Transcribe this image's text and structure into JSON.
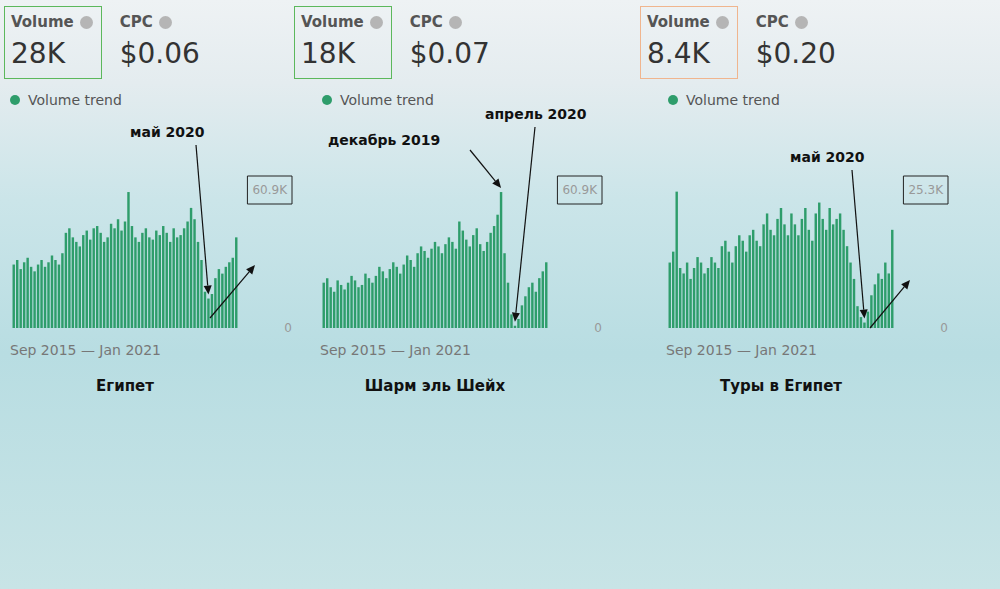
{
  "chart_data": [
    {
      "type": "bar",
      "title": "Египет",
      "header": {
        "volume_label": "Volume",
        "volume": "28K",
        "cpc_label": "CPC",
        "cpc": "$0.06",
        "trend_label": "Volume trend",
        "color": "#5cb85c"
      },
      "xlabel": "Sep 2015 — Jan 2021",
      "categories": [
        null,
        null,
        null,
        null,
        null,
        null,
        null,
        null,
        null,
        null,
        null,
        null,
        null,
        null,
        null,
        null,
        null,
        null,
        null,
        null,
        null,
        null,
        null,
        null,
        null,
        null,
        null,
        null,
        null,
        null,
        null,
        null,
        null,
        null,
        null,
        null,
        null,
        null,
        null,
        null,
        null,
        null,
        null,
        null,
        null,
        null,
        null,
        null,
        null,
        null,
        null,
        null,
        null,
        null,
        null,
        null,
        null,
        null,
        null,
        null,
        null,
        null,
        null,
        null,
        null
      ],
      "values": [
        28000,
        30000,
        26000,
        29000,
        31000,
        27000,
        25000,
        28000,
        30000,
        27000,
        29000,
        32000,
        30000,
        28000,
        33000,
        42000,
        44000,
        40000,
        38000,
        36000,
        41000,
        43000,
        39000,
        44000,
        45000,
        42000,
        38000,
        40000,
        46000,
        44000,
        48000,
        43000,
        47000,
        60000,
        45000,
        40000,
        38000,
        42000,
        44000,
        40000,
        39000,
        43000,
        41000,
        45000,
        42000,
        38000,
        44000,
        40000,
        41000,
        44000,
        47000,
        53000,
        48000,
        38000,
        30000,
        16000,
        13000,
        15000,
        22000,
        26000,
        24000,
        27000,
        29000,
        31000,
        40000
      ],
      "color": "#2e9d6b",
      "ylim": [
        0,
        60900
      ],
      "yticks": [
        0,
        {
          "value": 60900,
          "label": "60.9K"
        }
      ],
      "grid": false,
      "tick_labels": "y",
      "annotations": [
        {
          "text": "май 2020",
          "at": 56
        }
      ]
    },
    {
      "type": "bar",
      "title": "Шарм эль Шейх",
      "header": {
        "volume_label": "Volume",
        "volume": "18K",
        "cpc_label": "CPC",
        "cpc": "$0.07",
        "trend_label": "Volume trend",
        "color": "#5cb85c"
      },
      "xlabel": "Sep 2015 — Jan 2021",
      "categories": [
        null,
        null,
        null,
        null,
        null,
        null,
        null,
        null,
        null,
        null,
        null,
        null,
        null,
        null,
        null,
        null,
        null,
        null,
        null,
        null,
        null,
        null,
        null,
        null,
        null,
        null,
        null,
        null,
        null,
        null,
        null,
        null,
        null,
        null,
        null,
        null,
        null,
        null,
        null,
        null,
        null,
        null,
        null,
        null,
        null,
        null,
        null,
        null,
        null,
        null,
        null,
        null,
        null,
        null,
        null,
        null,
        null,
        null,
        null,
        null,
        null,
        null,
        null,
        null,
        null
      ],
      "values": [
        20000,
        22000,
        18000,
        16000,
        21000,
        19000,
        17000,
        20000,
        23000,
        21000,
        18000,
        19000,
        24000,
        22000,
        20000,
        23000,
        27000,
        25000,
        22000,
        26000,
        29000,
        27000,
        24000,
        28000,
        32000,
        30000,
        27000,
        33000,
        36000,
        34000,
        31000,
        35000,
        38000,
        36000,
        33000,
        37000,
        40000,
        38000,
        35000,
        47000,
        43000,
        39000,
        36000,
        41000,
        44000,
        37000,
        34000,
        38000,
        42000,
        45000,
        50000,
        60000,
        33000,
        20000,
        6000,
        1000,
        4000,
        10000,
        14000,
        18000,
        20000,
        16000,
        22000,
        25000,
        29000
      ],
      "color": "#2e9d6b",
      "ylim": [
        0,
        60900
      ],
      "yticks": [
        0,
        {
          "value": 60900,
          "label": "60.9K"
        }
      ],
      "grid": false,
      "tick_labels": "y",
      "annotations": [
        {
          "text": "декабрь 2019",
          "at": 51
        },
        {
          "text": "апрель 2020",
          "at": 55
        }
      ]
    },
    {
      "type": "bar",
      "title": "Туры в Египет",
      "header": {
        "volume_label": "Volume",
        "volume": "8.4K",
        "cpc_label": "CPC",
        "cpc": "$0.20",
        "trend_label": "Volume trend",
        "color": "#f0b58e"
      },
      "xlabel": "Sep 2015 — Jan 2021",
      "categories": [
        null,
        null,
        null,
        null,
        null,
        null,
        null,
        null,
        null,
        null,
        null,
        null,
        null,
        null,
        null,
        null,
        null,
        null,
        null,
        null,
        null,
        null,
        null,
        null,
        null,
        null,
        null,
        null,
        null,
        null,
        null,
        null,
        null,
        null,
        null,
        null,
        null,
        null,
        null,
        null,
        null,
        null,
        null,
        null,
        null,
        null,
        null,
        null,
        null,
        null,
        null,
        null,
        null,
        null,
        null,
        null,
        null,
        null,
        null,
        null,
        null,
        null,
        null,
        null,
        null
      ],
      "values": [
        12000,
        14000,
        25000,
        11000,
        10000,
        12000,
        9000,
        11000,
        13000,
        12000,
        10000,
        11000,
        13000,
        12000,
        11000,
        15000,
        16000,
        14000,
        12000,
        15000,
        17000,
        16000,
        14000,
        17000,
        18000,
        16000,
        15000,
        19000,
        21000,
        18000,
        17000,
        20000,
        22000,
        19000,
        17000,
        21000,
        19000,
        17000,
        20000,
        22000,
        18000,
        16000,
        21000,
        23000,
        20000,
        18000,
        22000,
        19000,
        20000,
        21000,
        18000,
        15000,
        12000,
        9000,
        4000,
        2000,
        1000,
        3000,
        6000,
        8000,
        10000,
        9000,
        12000,
        10000,
        18000
      ],
      "color": "#2e9d6b",
      "ylim": [
        0,
        25300
      ],
      "yticks": [
        0,
        {
          "value": 25300,
          "label": "25.3K"
        }
      ],
      "grid": false,
      "tick_labels": "y",
      "annotations": [
        {
          "text": "май 2020",
          "at": 56
        }
      ]
    }
  ]
}
